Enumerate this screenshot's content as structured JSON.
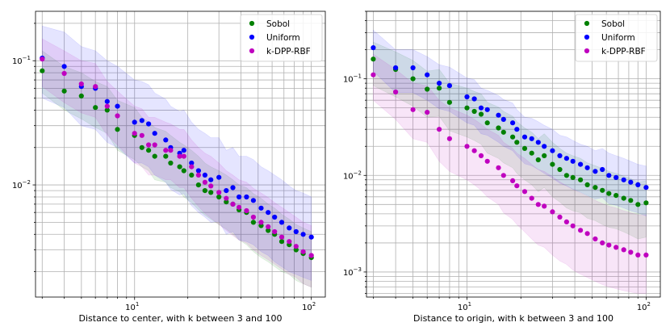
{
  "colors": {
    "Sobol": "#008000",
    "Uniform": "#0000ff",
    "k-DPP-RBF": "#bf00bf"
  },
  "chart_data": [
    {
      "type": "scatter",
      "xscale": "log",
      "yscale": "log",
      "xlabel": "Distance to center, with k between 3 and 100",
      "ylabel": "",
      "xlim": [
        2.75,
        120
      ],
      "ylim": [
        0.00125,
        0.25
      ],
      "grid": true,
      "legend_position": "top-right",
      "x_ticks": [
        {
          "base": "10",
          "exp": "1",
          "value": 10
        },
        {
          "base": "10",
          "exp": "2",
          "value": 100
        }
      ],
      "y_ticks": [
        {
          "base": "10",
          "exp": "−1",
          "value": 0.1
        },
        {
          "base": "10",
          "exp": "−2",
          "value": 0.01
        }
      ],
      "x": [
        3,
        4,
        5,
        6,
        7,
        8,
        10,
        11,
        12,
        13,
        15,
        16,
        18,
        19,
        21,
        23,
        25,
        27,
        30,
        33,
        36,
        39,
        43,
        47,
        52,
        57,
        62,
        68,
        75,
        82,
        90,
        100
      ],
      "series": [
        {
          "name": "Sobol",
          "values": [
            0.083,
            0.057,
            0.052,
            0.042,
            0.04,
            0.028,
            0.025,
            0.02,
            0.019,
            0.017,
            0.017,
            0.015,
            0.014,
            0.013,
            0.012,
            0.01,
            0.009,
            0.0087,
            0.008,
            0.0073,
            0.007,
            0.0063,
            0.006,
            0.005,
            0.0047,
            0.0043,
            0.004,
            0.0035,
            0.0033,
            0.003,
            0.0028,
            0.0026
          ],
          "band_low": [
            0.055,
            0.04,
            0.034,
            0.029,
            0.026,
            0.019,
            0.016,
            0.014,
            0.013,
            0.011,
            0.0105,
            0.0095,
            0.0088,
            0.008,
            0.0072,
            0.0063,
            0.0057,
            0.0053,
            0.0048,
            0.0044,
            0.004,
            0.0036,
            0.0033,
            0.0029,
            0.0026,
            0.0024,
            0.0022,
            0.002,
            0.0019,
            0.0017,
            0.0016,
            0.0015
          ],
          "band_high": [
            0.12,
            0.09,
            0.08,
            0.068,
            0.062,
            0.048,
            0.042,
            0.035,
            0.032,
            0.029,
            0.027,
            0.025,
            0.022,
            0.021,
            0.019,
            0.017,
            0.015,
            0.014,
            0.013,
            0.012,
            0.011,
            0.01,
            0.0095,
            0.0085,
            0.0078,
            0.007,
            0.0065,
            0.0058,
            0.0053,
            0.0048,
            0.0045,
            0.0042
          ]
        },
        {
          "name": "Uniform",
          "values": [
            0.105,
            0.09,
            0.062,
            0.06,
            0.047,
            0.043,
            0.032,
            0.033,
            0.031,
            0.026,
            0.023,
            0.02,
            0.018,
            0.019,
            0.015,
            0.013,
            0.012,
            0.011,
            0.0115,
            0.009,
            0.0095,
            0.008,
            0.008,
            0.0075,
            0.0065,
            0.006,
            0.0055,
            0.005,
            0.0045,
            0.0042,
            0.004,
            0.0038
          ],
          "band_low": [
            0.05,
            0.042,
            0.03,
            0.028,
            0.022,
            0.02,
            0.015,
            0.015,
            0.014,
            0.012,
            0.0105,
            0.0092,
            0.0083,
            0.0085,
            0.0068,
            0.006,
            0.0055,
            0.005,
            0.0051,
            0.004,
            0.0042,
            0.0036,
            0.0035,
            0.0033,
            0.0029,
            0.0027,
            0.0024,
            0.0022,
            0.002,
            0.0019,
            0.0018,
            0.0017
          ],
          "band_high": [
            0.19,
            0.17,
            0.13,
            0.12,
            0.1,
            0.09,
            0.07,
            0.068,
            0.064,
            0.055,
            0.049,
            0.043,
            0.039,
            0.04,
            0.032,
            0.028,
            0.026,
            0.024,
            0.024,
            0.019,
            0.02,
            0.017,
            0.017,
            0.016,
            0.014,
            0.013,
            0.012,
            0.011,
            0.0098,
            0.009,
            0.0086,
            0.008
          ]
        },
        {
          "name": "k-DPP-RBF",
          "values": [
            0.103,
            0.079,
            0.065,
            0.062,
            0.043,
            0.036,
            0.026,
            0.025,
            0.021,
            0.021,
            0.019,
            0.019,
            0.017,
            0.017,
            0.014,
            0.012,
            0.0105,
            0.0098,
            0.0087,
            0.0078,
            0.007,
            0.0066,
            0.0062,
            0.0055,
            0.005,
            0.0046,
            0.0042,
            0.0038,
            0.0035,
            0.0032,
            0.0029,
            0.0027
          ],
          "band_low": [
            0.062,
            0.046,
            0.038,
            0.035,
            0.025,
            0.021,
            0.015,
            0.014,
            0.012,
            0.012,
            0.011,
            0.011,
            0.0095,
            0.0095,
            0.0078,
            0.0067,
            0.0059,
            0.0054,
            0.0048,
            0.0043,
            0.0039,
            0.0036,
            0.0034,
            0.003,
            0.0027,
            0.0025,
            0.0023,
            0.0021,
            0.0019,
            0.0018,
            0.0016,
            0.0015
          ],
          "band_high": [
            0.15,
            0.12,
            0.1,
            0.095,
            0.068,
            0.057,
            0.043,
            0.041,
            0.035,
            0.035,
            0.032,
            0.031,
            0.028,
            0.028,
            0.023,
            0.02,
            0.018,
            0.017,
            0.015,
            0.013,
            0.012,
            0.011,
            0.0105,
            0.0094,
            0.0086,
            0.0079,
            0.0072,
            0.0066,
            0.006,
            0.0055,
            0.005,
            0.0047
          ]
        }
      ]
    },
    {
      "type": "scatter",
      "xscale": "log",
      "yscale": "log",
      "xlabel": "Distance to origin, with k between 3 and 100",
      "ylabel": "",
      "xlim": [
        2.75,
        120
      ],
      "ylim": [
        0.00055,
        0.5
      ],
      "grid": true,
      "legend_position": "top-right",
      "x_ticks": [
        {
          "base": "10",
          "exp": "1",
          "value": 10
        },
        {
          "base": "10",
          "exp": "2",
          "value": 100
        }
      ],
      "y_ticks": [
        {
          "base": "10",
          "exp": "−1",
          "value": 0.1
        },
        {
          "base": "10",
          "exp": "−2",
          "value": 0.01
        },
        {
          "base": "10",
          "exp": "−3",
          "value": 0.001
        }
      ],
      "x": [
        3,
        4,
        5,
        6,
        7,
        8,
        10,
        11,
        12,
        13,
        15,
        16,
        18,
        19,
        21,
        23,
        25,
        27,
        30,
        33,
        36,
        39,
        43,
        47,
        52,
        57,
        62,
        68,
        75,
        82,
        90,
        100
      ],
      "series": [
        {
          "name": "Sobol",
          "values": [
            0.16,
            0.125,
            0.1,
            0.078,
            0.08,
            0.057,
            0.05,
            0.046,
            0.043,
            0.035,
            0.031,
            0.028,
            0.025,
            0.022,
            0.019,
            0.017,
            0.0145,
            0.016,
            0.013,
            0.0115,
            0.01,
            0.0095,
            0.009,
            0.008,
            0.0075,
            0.007,
            0.0065,
            0.0062,
            0.0058,
            0.0055,
            0.005,
            0.0052
          ],
          "band_low": [
            0.085,
            0.065,
            0.052,
            0.04,
            0.041,
            0.029,
            0.025,
            0.023,
            0.021,
            0.017,
            0.015,
            0.0135,
            0.012,
            0.0105,
            0.009,
            0.008,
            0.0068,
            0.0075,
            0.006,
            0.0053,
            0.0046,
            0.0043,
            0.0041,
            0.0036,
            0.0034,
            0.0031,
            0.0029,
            0.0028,
            0.0026,
            0.0024,
            0.0022,
            0.0023
          ],
          "band_high": [
            0.24,
            0.19,
            0.155,
            0.12,
            0.125,
            0.09,
            0.08,
            0.074,
            0.07,
            0.057,
            0.051,
            0.046,
            0.041,
            0.036,
            0.031,
            0.028,
            0.024,
            0.027,
            0.022,
            0.019,
            0.017,
            0.016,
            0.015,
            0.0135,
            0.0126,
            0.0118,
            0.011,
            0.0105,
            0.0098,
            0.0093,
            0.0085,
            0.0088
          ]
        },
        {
          "name": "Uniform",
          "values": [
            0.21,
            0.13,
            0.13,
            0.11,
            0.09,
            0.085,
            0.065,
            0.062,
            0.05,
            0.048,
            0.042,
            0.038,
            0.035,
            0.03,
            0.025,
            0.024,
            0.022,
            0.02,
            0.018,
            0.016,
            0.015,
            0.014,
            0.013,
            0.012,
            0.011,
            0.0115,
            0.01,
            0.0095,
            0.009,
            0.0085,
            0.008,
            0.0075
          ],
          "band_low": [
            0.12,
            0.072,
            0.072,
            0.06,
            0.049,
            0.046,
            0.035,
            0.033,
            0.027,
            0.026,
            0.022,
            0.02,
            0.018,
            0.016,
            0.0132,
            0.0126,
            0.0115,
            0.0105,
            0.0094,
            0.0083,
            0.0078,
            0.0072,
            0.0067,
            0.0062,
            0.0057,
            0.0059,
            0.0051,
            0.0049,
            0.0046,
            0.0043,
            0.0041,
            0.0038
          ],
          "band_high": [
            0.32,
            0.2,
            0.2,
            0.17,
            0.14,
            0.132,
            0.102,
            0.098,
            0.08,
            0.076,
            0.067,
            0.061,
            0.056,
            0.048,
            0.04,
            0.039,
            0.036,
            0.033,
            0.03,
            0.026,
            0.025,
            0.023,
            0.021,
            0.02,
            0.018,
            0.019,
            0.017,
            0.016,
            0.015,
            0.014,
            0.013,
            0.0125
          ]
        },
        {
          "name": "k-DPP-RBF",
          "values": [
            0.11,
            0.073,
            0.048,
            0.045,
            0.03,
            0.024,
            0.02,
            0.018,
            0.016,
            0.014,
            0.012,
            0.01,
            0.0088,
            0.0078,
            0.0068,
            0.0058,
            0.005,
            0.0048,
            0.0042,
            0.0037,
            0.0033,
            0.003,
            0.0027,
            0.0025,
            0.0022,
            0.002,
            0.0019,
            0.0018,
            0.0017,
            0.0016,
            0.0015,
            0.0015
          ],
          "band_low": [
            0.06,
            0.038,
            0.024,
            0.022,
            0.014,
            0.011,
            0.009,
            0.008,
            0.007,
            0.006,
            0.005,
            0.0041,
            0.0035,
            0.0031,
            0.0026,
            0.0022,
            0.0019,
            0.0018,
            0.0015,
            0.0013,
            0.0012,
            0.00105,
            0.00095,
            0.00088,
            0.0008,
            0.00074,
            0.0007,
            0.00067,
            0.00064,
            0.00062,
            0.0006,
            0.0006
          ],
          "band_high": [
            0.18,
            0.125,
            0.09,
            0.085,
            0.06,
            0.05,
            0.042,
            0.038,
            0.034,
            0.03,
            0.026,
            0.022,
            0.019,
            0.017,
            0.015,
            0.013,
            0.0115,
            0.011,
            0.0097,
            0.0086,
            0.0078,
            0.0072,
            0.0066,
            0.0061,
            0.0055,
            0.0051,
            0.0048,
            0.0046,
            0.0043,
            0.0041,
            0.0039,
            0.0039
          ]
        }
      ]
    }
  ]
}
